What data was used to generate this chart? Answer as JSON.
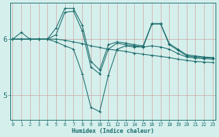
{
  "xlabel": "Humidex (Indice chaleur)",
  "bg_color": "#d4efec",
  "grid_color_h": "#c8a0a0",
  "grid_color_v": "#c8a0a0",
  "line_color": "#1a6b6b",
  "x_ticks": [
    0,
    1,
    2,
    3,
    4,
    5,
    6,
    7,
    8,
    9,
    10,
    11,
    12,
    13,
    14,
    15,
    16,
    17,
    18,
    19,
    20,
    21,
    22,
    23
  ],
  "y_ticks": [
    5,
    6
  ],
  "ylim": [
    4.55,
    6.65
  ],
  "xlim": [
    -0.3,
    23.3
  ],
  "series": [
    [
      6.0,
      6.12,
      6.0,
      6.0,
      6.0,
      6.2,
      6.55,
      6.55,
      6.25,
      5.6,
      5.45,
      5.9,
      5.95,
      5.93,
      5.9,
      5.88,
      6.28,
      6.28,
      5.92,
      5.82,
      5.72,
      5.7,
      5.68,
      5.67
    ],
    [
      6.0,
      6.0,
      6.0,
      6.0,
      6.0,
      5.95,
      5.88,
      5.82,
      5.38,
      4.78,
      4.7,
      5.35,
      5.82,
      5.88,
      5.86,
      5.86,
      5.88,
      5.86,
      5.82,
      5.74,
      5.68,
      5.66,
      5.65,
      5.64
    ],
    [
      6.0,
      6.0,
      6.0,
      6.0,
      6.0,
      6.0,
      5.98,
      5.95,
      5.92,
      5.88,
      5.85,
      5.82,
      5.8,
      5.78,
      5.75,
      5.73,
      5.71,
      5.69,
      5.67,
      5.64,
      5.62,
      5.6,
      5.59,
      5.58
    ],
    [
      6.0,
      6.0,
      6.0,
      6.0,
      6.0,
      6.08,
      6.48,
      6.5,
      6.15,
      5.5,
      5.38,
      5.82,
      5.93,
      5.9,
      5.88,
      5.86,
      6.27,
      6.27,
      5.9,
      5.8,
      5.7,
      5.68,
      5.67,
      5.66
    ]
  ]
}
